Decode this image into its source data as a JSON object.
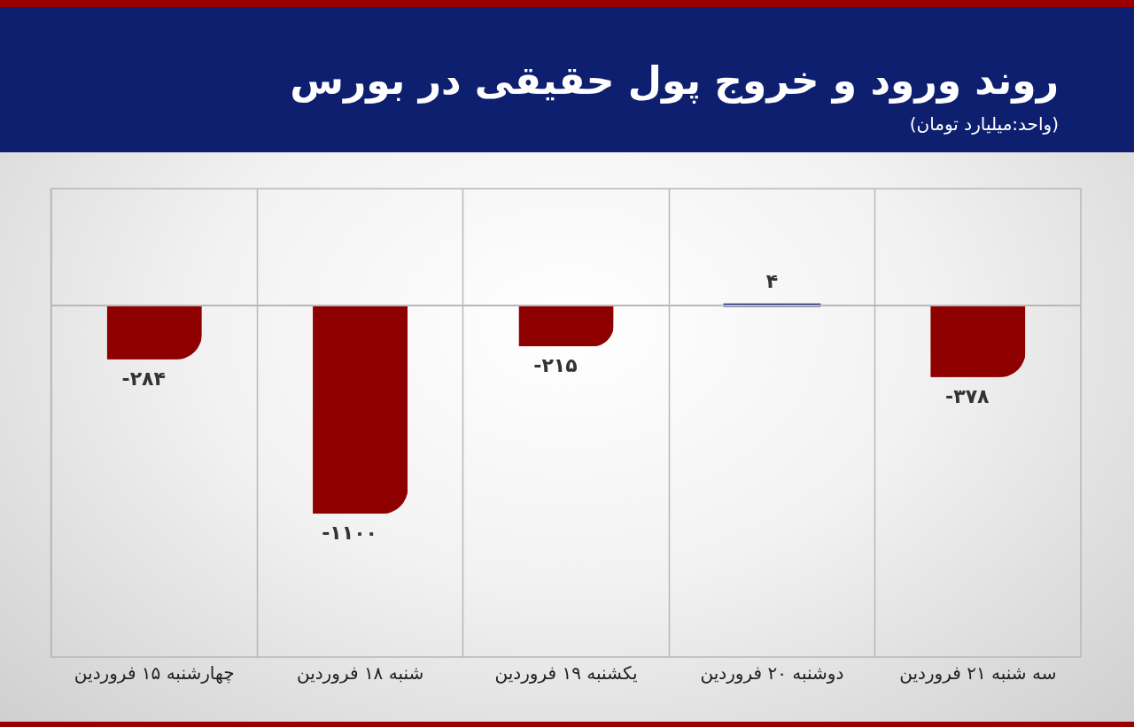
{
  "chart_data": {
    "type": "bar",
    "title": "روند ورود و خروج پول حقیقی در بورس",
    "subtitle": "(واحد:میلیارد تومان)",
    "categories": [
      "چهارشنبه\n۱۵ فروردین",
      "شنبه\n۱۸ فروردین",
      "یکشنبه\n۱۹ فروردین",
      "دوشنبه\n۲۰ فروردین",
      "سه شنبه\n۲۱ فروردین"
    ],
    "values": [
      -284,
      -1100,
      -215,
      4,
      -378
    ],
    "colors": [
      "#8e0000",
      "#8e0000",
      "#8e0000",
      "#13237a",
      "#8e0000"
    ],
    "value_labels": [
      "-۲۸۴",
      "-۱۱۰۰",
      "-۲۱۵",
      "۴",
      "-۳۷۸"
    ],
    "grid": "x"
  }
}
